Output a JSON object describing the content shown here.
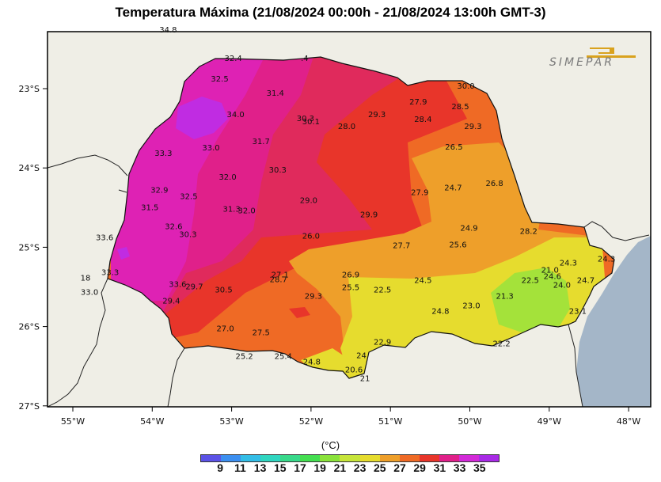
{
  "title": "Temperatura Máxima (21/08/2024 00:00h - 21/08/2024 13:00h GMT-3)",
  "logo_text": "SIMEPAR",
  "units": "(°C)",
  "colors": {
    "ocean": "#a4b6c8",
    "land": "#efeee6",
    "logo": "#d9a21e"
  },
  "axes": {
    "x_ticks": [
      "55°W",
      "54°W",
      "53°W",
      "52°W",
      "51°W",
      "50°W",
      "49°W",
      "48°W"
    ],
    "y_ticks": [
      "23°S",
      "24°S",
      "25°S",
      "26°S",
      "27°S"
    ]
  },
  "colorbar": {
    "labels": [
      "9",
      "11",
      "13",
      "15",
      "17",
      "19",
      "21",
      "23",
      "25",
      "27",
      "29",
      "31",
      "33",
      "35"
    ],
    "colors": [
      "#5b52e6",
      "#3c8ff0",
      "#33bde6",
      "#30d6c0",
      "#38d98a",
      "#44de50",
      "#8ae23a",
      "#c7e53a",
      "#e6dc2e",
      "#ee9f2a",
      "#ef6a25",
      "#e8352a",
      "#e0208a",
      "#d22ad8",
      "#a82ae6"
    ]
  },
  "station_labels": [
    {
      "t": "34.8",
      "lon": -53.8,
      "lat": -22.26
    },
    {
      "t": "32.4",
      "lon": -52.98,
      "lat": -22.62
    },
    {
      "t": ".4",
      "lon": -52.08,
      "lat": -22.62
    },
    {
      "t": "32.5",
      "lon": -53.15,
      "lat": -22.88
    },
    {
      "t": "31.4",
      "lon": -52.45,
      "lat": -23.06
    },
    {
      "t": "30.0",
      "lon": -50.05,
      "lat": -22.97
    },
    {
      "t": "27.9",
      "lon": -50.65,
      "lat": -23.17
    },
    {
      "t": "28.5",
      "lon": -50.12,
      "lat": -23.23
    },
    {
      "t": "34.0",
      "lon": -52.95,
      "lat": -23.33
    },
    {
      "t": "30.3",
      "lon": -52.07,
      "lat": -23.38
    },
    {
      "t": "30.1",
      "lon": -52.0,
      "lat": -23.42
    },
    {
      "t": "29.3",
      "lon": -51.17,
      "lat": -23.33
    },
    {
      "t": "28.4",
      "lon": -50.59,
      "lat": -23.39
    },
    {
      "t": "28.0",
      "lon": -51.55,
      "lat": -23.48
    },
    {
      "t": "29.3",
      "lon": -49.96,
      "lat": -23.48
    },
    {
      "t": "31.7",
      "lon": -52.63,
      "lat": -23.67
    },
    {
      "t": "33.0",
      "lon": -53.26,
      "lat": -23.75
    },
    {
      "t": "26.5",
      "lon": -50.2,
      "lat": -23.74
    },
    {
      "t": "33.3",
      "lon": -53.86,
      "lat": -23.82
    },
    {
      "t": "30.3",
      "lon": -52.42,
      "lat": -24.03
    },
    {
      "t": "32.0",
      "lon": -53.05,
      "lat": -24.12
    },
    {
      "t": "26.8",
      "lon": -49.69,
      "lat": -24.2
    },
    {
      "t": "24.7",
      "lon": -50.21,
      "lat": -24.25
    },
    {
      "t": "32.9",
      "lon": -53.91,
      "lat": -24.28
    },
    {
      "t": "27.9",
      "lon": -50.63,
      "lat": -24.31
    },
    {
      "t": "32.5",
      "lon": -53.54,
      "lat": -24.36
    },
    {
      "t": "29.0",
      "lon": -52.03,
      "lat": -24.41
    },
    {
      "t": "31.5",
      "lon": -54.03,
      "lat": -24.5
    },
    {
      "t": "31.3",
      "lon": -53.0,
      "lat": -24.52
    },
    {
      "t": "32.0",
      "lon": -52.81,
      "lat": -24.54
    },
    {
      "t": "29.9",
      "lon": -51.27,
      "lat": -24.59
    },
    {
      "t": "32.6",
      "lon": -53.73,
      "lat": -24.74
    },
    {
      "t": "24.9",
      "lon": -50.01,
      "lat": -24.76
    },
    {
      "t": "28.2",
      "lon": -49.26,
      "lat": -24.8
    },
    {
      "t": "30.3",
      "lon": -53.55,
      "lat": -24.84
    },
    {
      "t": "26.0",
      "lon": -52.0,
      "lat": -24.86
    },
    {
      "t": "33.6",
      "lon": -54.6,
      "lat": -24.88
    },
    {
      "t": "27.7",
      "lon": -50.86,
      "lat": -24.98
    },
    {
      "t": "25.6",
      "lon": -50.15,
      "lat": -24.97
    },
    {
      "t": "21.0",
      "lon": -48.99,
      "lat": -25.29
    },
    {
      "t": "24.3",
      "lon": -48.76,
      "lat": -25.2
    },
    {
      "t": "24.3",
      "lon": -48.28,
      "lat": -25.15
    },
    {
      "t": "27.1",
      "lon": -52.39,
      "lat": -25.35
    },
    {
      "t": "26.9",
      "lon": -51.5,
      "lat": -25.35
    },
    {
      "t": "28.7",
      "lon": -52.41,
      "lat": -25.41
    },
    {
      "t": "24.6",
      "lon": -48.96,
      "lat": -25.37
    },
    {
      "t": "22.5",
      "lon": -49.24,
      "lat": -25.42
    },
    {
      "t": "24.7",
      "lon": -48.54,
      "lat": -25.42
    },
    {
      "t": "24.5",
      "lon": -50.59,
      "lat": -25.42
    },
    {
      "t": "33.3",
      "lon": -54.53,
      "lat": -25.32
    },
    {
      "t": "24.0",
      "lon": -48.84,
      "lat": -25.48
    },
    {
      "t": "18",
      "lon": -54.84,
      "lat": -25.39
    },
    {
      "t": "33.6",
      "lon": -53.68,
      "lat": -25.47
    },
    {
      "t": "29.7",
      "lon": -53.47,
      "lat": -25.5
    },
    {
      "t": "30.5",
      "lon": -53.1,
      "lat": -25.54
    },
    {
      "t": "25.5",
      "lon": -51.5,
      "lat": -25.51
    },
    {
      "t": "22.5",
      "lon": -51.1,
      "lat": -25.54
    },
    {
      "t": "33.0",
      "lon": -54.79,
      "lat": -25.57
    },
    {
      "t": "29.3",
      "lon": -51.97,
      "lat": -25.62
    },
    {
      "t": "21.3",
      "lon": -49.56,
      "lat": -25.62
    },
    {
      "t": "29.4",
      "lon": -53.76,
      "lat": -25.68
    },
    {
      "t": "23.0",
      "lon": -49.98,
      "lat": -25.74
    },
    {
      "t": "24.8",
      "lon": -50.37,
      "lat": -25.81
    },
    {
      "t": "23.1",
      "lon": -48.64,
      "lat": -25.81
    },
    {
      "t": "27.0",
      "lon": -53.08,
      "lat": -26.03
    },
    {
      "t": "27.5",
      "lon": -52.63,
      "lat": -26.08
    },
    {
      "t": "22.9",
      "lon": -51.1,
      "lat": -26.2
    },
    {
      "t": "25.2",
      "lon": -52.84,
      "lat": -26.38
    },
    {
      "t": "25.4",
      "lon": -52.35,
      "lat": -26.38
    },
    {
      "t": "24.",
      "lon": -51.35,
      "lat": -26.37
    },
    {
      "t": "24.8",
      "lon": -51.99,
      "lat": -26.45
    },
    {
      "t": "20.6",
      "lon": -51.46,
      "lat": -26.55
    },
    {
      "t": "22.2",
      "lon": -49.6,
      "lat": -26.22
    },
    {
      "t": "21",
      "lon": -51.32,
      "lat": -26.66
    }
  ]
}
